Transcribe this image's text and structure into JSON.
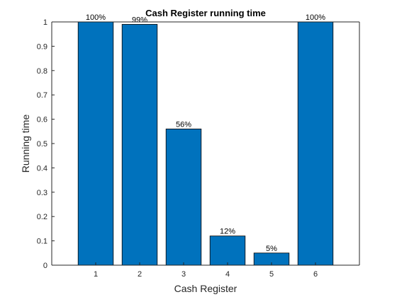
{
  "chart_data": {
    "type": "bar",
    "title": "Cash Register running time",
    "xlabel": "Cash Register",
    "ylabel": "Running time",
    "categories": [
      "1",
      "2",
      "3",
      "4",
      "5",
      "6"
    ],
    "values": [
      1.0,
      0.99,
      0.56,
      0.12,
      0.05,
      1.0
    ],
    "data_labels": [
      "100%",
      "99%",
      "56%",
      "12%",
      "5%",
      "100%"
    ],
    "xlim": [
      0,
      7
    ],
    "ylim": [
      0,
      1
    ],
    "yticks": [
      0,
      0.1,
      0.2,
      0.3,
      0.4,
      0.5,
      0.6,
      0.7,
      0.8,
      0.9,
      1
    ],
    "ytick_labels": [
      "0",
      "0.1",
      "0.2",
      "0.3",
      "0.4",
      "0.5",
      "0.6",
      "0.7",
      "0.8",
      "0.9",
      "1"
    ],
    "grid": false,
    "colors": {
      "bar_fill": "#0072BD",
      "bar_edge": "#000000",
      "axis": "#262626"
    }
  }
}
